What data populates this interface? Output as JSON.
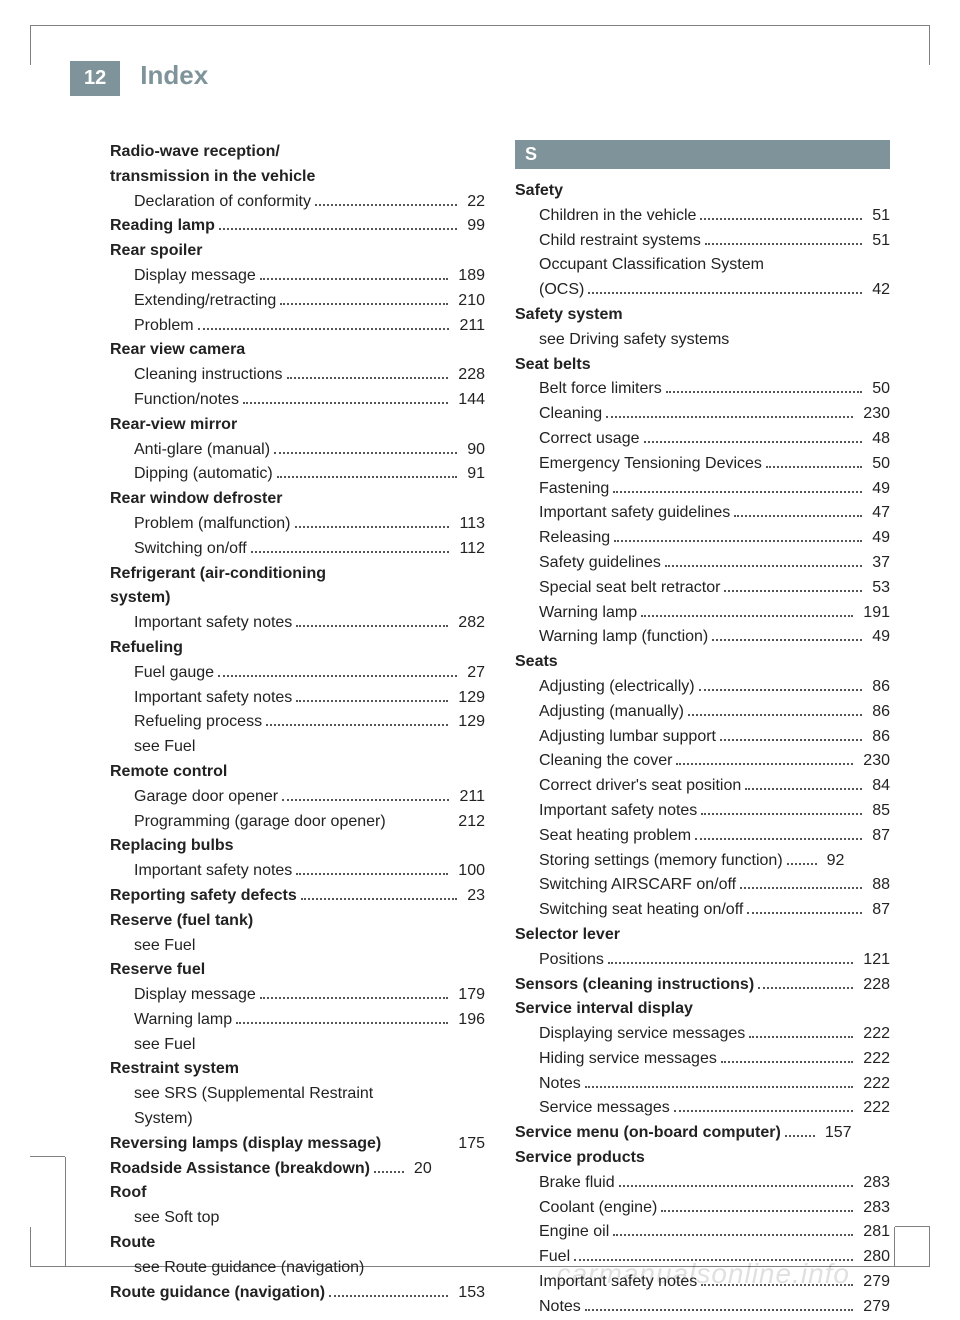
{
  "page_number": "12",
  "title": "Index",
  "watermark": "carmanualsonline.info",
  "left_column": [
    {
      "type": "heading",
      "label": "Radio-wave reception/"
    },
    {
      "type": "heading",
      "label": "transmission in the vehicle"
    },
    {
      "type": "sub",
      "label": "Declaration of conformity",
      "page": "22"
    },
    {
      "type": "entry",
      "label": "Reading lamp",
      "page": "99",
      "bold": true
    },
    {
      "type": "heading",
      "label": "Rear spoiler"
    },
    {
      "type": "sub",
      "label": "Display message",
      "page": "189"
    },
    {
      "type": "sub",
      "label": "Extending/retracting",
      "page": "210"
    },
    {
      "type": "sub",
      "label": "Problem",
      "page": "211"
    },
    {
      "type": "heading",
      "label": "Rear view camera"
    },
    {
      "type": "sub",
      "label": "Cleaning instructions",
      "page": "228"
    },
    {
      "type": "sub",
      "label": "Function/notes",
      "page": "144"
    },
    {
      "type": "heading",
      "label": "Rear-view mirror"
    },
    {
      "type": "sub",
      "label": "Anti-glare (manual)",
      "page": "90"
    },
    {
      "type": "sub",
      "label": "Dipping (automatic)",
      "page": "91"
    },
    {
      "type": "heading",
      "label": "Rear window defroster"
    },
    {
      "type": "sub",
      "label": "Problem (malfunction)",
      "page": "113"
    },
    {
      "type": "sub",
      "label": "Switching on/off",
      "page": "112"
    },
    {
      "type": "heading",
      "label": "Refrigerant (air-conditioning"
    },
    {
      "type": "heading",
      "label": "system)"
    },
    {
      "type": "sub",
      "label": "Important safety notes",
      "page": "282"
    },
    {
      "type": "heading",
      "label": "Refueling"
    },
    {
      "type": "sub",
      "label": "Fuel gauge",
      "page": "27"
    },
    {
      "type": "sub",
      "label": "Important safety notes",
      "page": "129"
    },
    {
      "type": "sub",
      "label": "Refueling process",
      "page": "129"
    },
    {
      "type": "subtext",
      "label": "see Fuel"
    },
    {
      "type": "heading",
      "label": "Remote control"
    },
    {
      "type": "sub",
      "label": "Garage door opener",
      "page": "211"
    },
    {
      "type": "sub",
      "label": "Programming (garage door opener)",
      "page": "212",
      "nodots": true
    },
    {
      "type": "heading",
      "label": "Replacing bulbs"
    },
    {
      "type": "sub",
      "label": "Important safety notes",
      "page": "100"
    },
    {
      "type": "entry",
      "label": "Reporting safety defects",
      "page": "23",
      "bold": true
    },
    {
      "type": "heading",
      "label": "Reserve (fuel tank)"
    },
    {
      "type": "subtext",
      "label": "see Fuel"
    },
    {
      "type": "heading",
      "label": "Reserve fuel"
    },
    {
      "type": "sub",
      "label": "Display message",
      "page": "179"
    },
    {
      "type": "sub",
      "label": "Warning lamp",
      "page": "196"
    },
    {
      "type": "subtext",
      "label": "see Fuel"
    },
    {
      "type": "heading",
      "label": "Restraint system"
    },
    {
      "type": "subtext",
      "label": "see SRS (Supplemental Restraint"
    },
    {
      "type": "subtext",
      "label": "System)"
    },
    {
      "type": "entry",
      "label": "Reversing lamps (display message)",
      "page": "175",
      "bold": true,
      "nodots": true
    },
    {
      "type": "entry",
      "label": "Roadside Assistance (breakdown)",
      "page": "20",
      "bold": true,
      "shortdots": true
    },
    {
      "type": "heading",
      "label": "Roof"
    },
    {
      "type": "subtext",
      "label": "see Soft top"
    },
    {
      "type": "heading",
      "label": "Route"
    },
    {
      "type": "subtext",
      "label": "see Route guidance (navigation)"
    },
    {
      "type": "entry",
      "label": "Route guidance (navigation)",
      "page": "153",
      "bold": true
    }
  ],
  "right_section_letter": "S",
  "right_column": [
    {
      "type": "heading",
      "label": "Safety"
    },
    {
      "type": "sub",
      "label": "Children in the vehicle",
      "page": "51"
    },
    {
      "type": "sub",
      "label": "Child restraint systems",
      "page": "51"
    },
    {
      "type": "subtext",
      "label": "Occupant Classification System"
    },
    {
      "type": "sub",
      "label": "(OCS)",
      "page": "42"
    },
    {
      "type": "heading",
      "label": "Safety system"
    },
    {
      "type": "subtext",
      "label": "see Driving safety systems"
    },
    {
      "type": "heading",
      "label": "Seat belts"
    },
    {
      "type": "sub",
      "label": "Belt force limiters",
      "page": "50"
    },
    {
      "type": "sub",
      "label": "Cleaning",
      "page": "230"
    },
    {
      "type": "sub",
      "label": "Correct usage",
      "page": "48"
    },
    {
      "type": "sub",
      "label": "Emergency Tensioning Devices",
      "page": "50"
    },
    {
      "type": "sub",
      "label": "Fastening",
      "page": "49"
    },
    {
      "type": "sub",
      "label": "Important safety guidelines",
      "page": "47"
    },
    {
      "type": "sub",
      "label": "Releasing",
      "page": "49"
    },
    {
      "type": "sub",
      "label": "Safety guidelines",
      "page": "37"
    },
    {
      "type": "sub",
      "label": "Special seat belt retractor",
      "page": "53"
    },
    {
      "type": "sub",
      "label": "Warning lamp",
      "page": "191"
    },
    {
      "type": "sub",
      "label": "Warning lamp (function)",
      "page": "49"
    },
    {
      "type": "heading",
      "label": "Seats"
    },
    {
      "type": "sub",
      "label": "Adjusting (electrically)",
      "page": "86"
    },
    {
      "type": "sub",
      "label": "Adjusting (manually)",
      "page": "86"
    },
    {
      "type": "sub",
      "label": "Adjusting lumbar support",
      "page": "86"
    },
    {
      "type": "sub",
      "label": "Cleaning the cover",
      "page": "230"
    },
    {
      "type": "sub",
      "label": "Correct driver's seat position",
      "page": "84"
    },
    {
      "type": "sub",
      "label": "Important safety notes",
      "page": "85"
    },
    {
      "type": "sub",
      "label": "Seat heating problem",
      "page": "87"
    },
    {
      "type": "sub",
      "label": "Storing settings (memory function)",
      "page": "92",
      "shortdots": true
    },
    {
      "type": "sub",
      "label": "Switching AIRSCARF on/off",
      "page": "88"
    },
    {
      "type": "sub",
      "label": "Switching seat heating on/off",
      "page": "87"
    },
    {
      "type": "heading",
      "label": "Selector lever"
    },
    {
      "type": "sub",
      "label": "Positions",
      "page": "121"
    },
    {
      "type": "entry",
      "label": "Sensors (cleaning instructions)",
      "page": "228",
      "bold": true
    },
    {
      "type": "heading",
      "label": "Service interval display"
    },
    {
      "type": "sub",
      "label": "Displaying service messages",
      "page": "222"
    },
    {
      "type": "sub",
      "label": "Hiding service messages",
      "page": "222"
    },
    {
      "type": "sub",
      "label": "Notes",
      "page": "222"
    },
    {
      "type": "sub",
      "label": "Service messages",
      "page": "222"
    },
    {
      "type": "entry",
      "label": "Service menu (on-board computer)",
      "page": "157",
      "bold": true,
      "shortdots": true
    },
    {
      "type": "heading",
      "label": "Service products"
    },
    {
      "type": "sub",
      "label": "Brake fluid",
      "page": "283"
    },
    {
      "type": "sub",
      "label": "Coolant (engine)",
      "page": "283"
    },
    {
      "type": "sub",
      "label": "Engine oil",
      "page": "281"
    },
    {
      "type": "sub",
      "label": "Fuel",
      "page": "280"
    },
    {
      "type": "sub",
      "label": "Important safety notes",
      "page": "279"
    },
    {
      "type": "sub",
      "label": "Notes",
      "page": "279"
    }
  ]
}
